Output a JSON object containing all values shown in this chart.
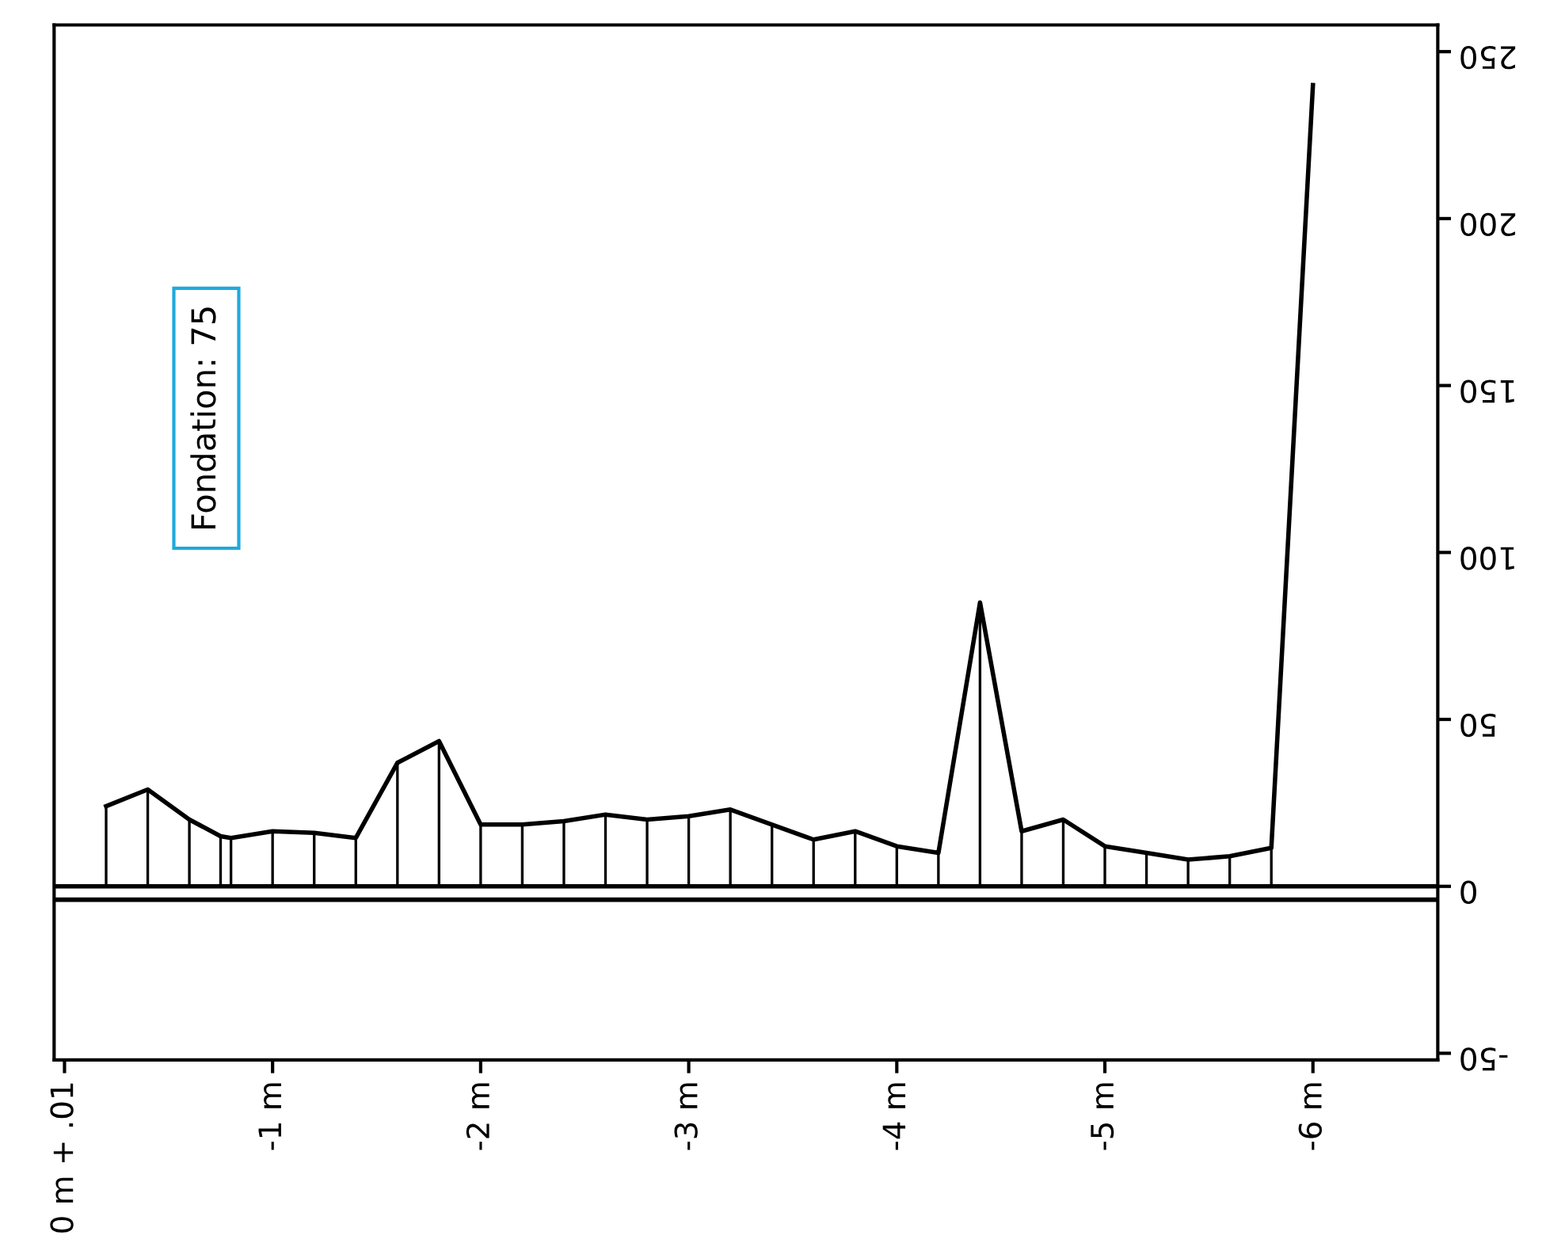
{
  "chart_data": {
    "type": "line",
    "x": [
      -0.2,
      -0.4,
      -0.6,
      -0.75,
      -0.8,
      -1.0,
      -1.2,
      -1.4,
      -1.6,
      -1.8,
      -2.0,
      -2.2,
      -2.4,
      -2.6,
      -2.8,
      -3.0,
      -3.2,
      -3.4,
      -3.6,
      -3.8,
      -4.0,
      -4.2,
      -4.4,
      -4.6,
      -4.8,
      -5.0,
      -5.2,
      -5.4,
      -5.6,
      -5.8,
      -6.0
    ],
    "series": [
      {
        "color": "#000000",
        "values": [
          24,
          29,
          20,
          15,
          14.5,
          16.5,
          16,
          14.5,
          37,
          43.5,
          18.5,
          18.5,
          19.5,
          21.5,
          20,
          21,
          23,
          18.5,
          14,
          16.5,
          12,
          10,
          85,
          16.5,
          20,
          12,
          10,
          8,
          9,
          11.5,
          240
        ]
      }
    ],
    "marker": "none",
    "line_style": "solid",
    "grid": false,
    "xlim": [
      0.05,
      -6.6
    ],
    "xticks": [
      {
        "value": 0,
        "label": "0 m + .01"
      },
      {
        "value": -1,
        "label": "-1 m"
      },
      {
        "value": -2,
        "label": "-2 m"
      },
      {
        "value": -3,
        "label": "-3 m"
      },
      {
        "value": -4,
        "label": "-4 m"
      },
      {
        "value": -5,
        "label": "-5 m"
      },
      {
        "value": -6,
        "label": "-6 m"
      }
    ],
    "ylim": [
      -52,
      258
    ],
    "yticks": [
      -50,
      0,
      50,
      100,
      150,
      200,
      250
    ],
    "ref_lines": [
      {
        "axis": "y",
        "value": 0,
        "color": "#000000"
      },
      {
        "axis": "y",
        "value": -4,
        "color": "#000000"
      }
    ],
    "annotations": [
      "Fondation: 75"
    ]
  }
}
